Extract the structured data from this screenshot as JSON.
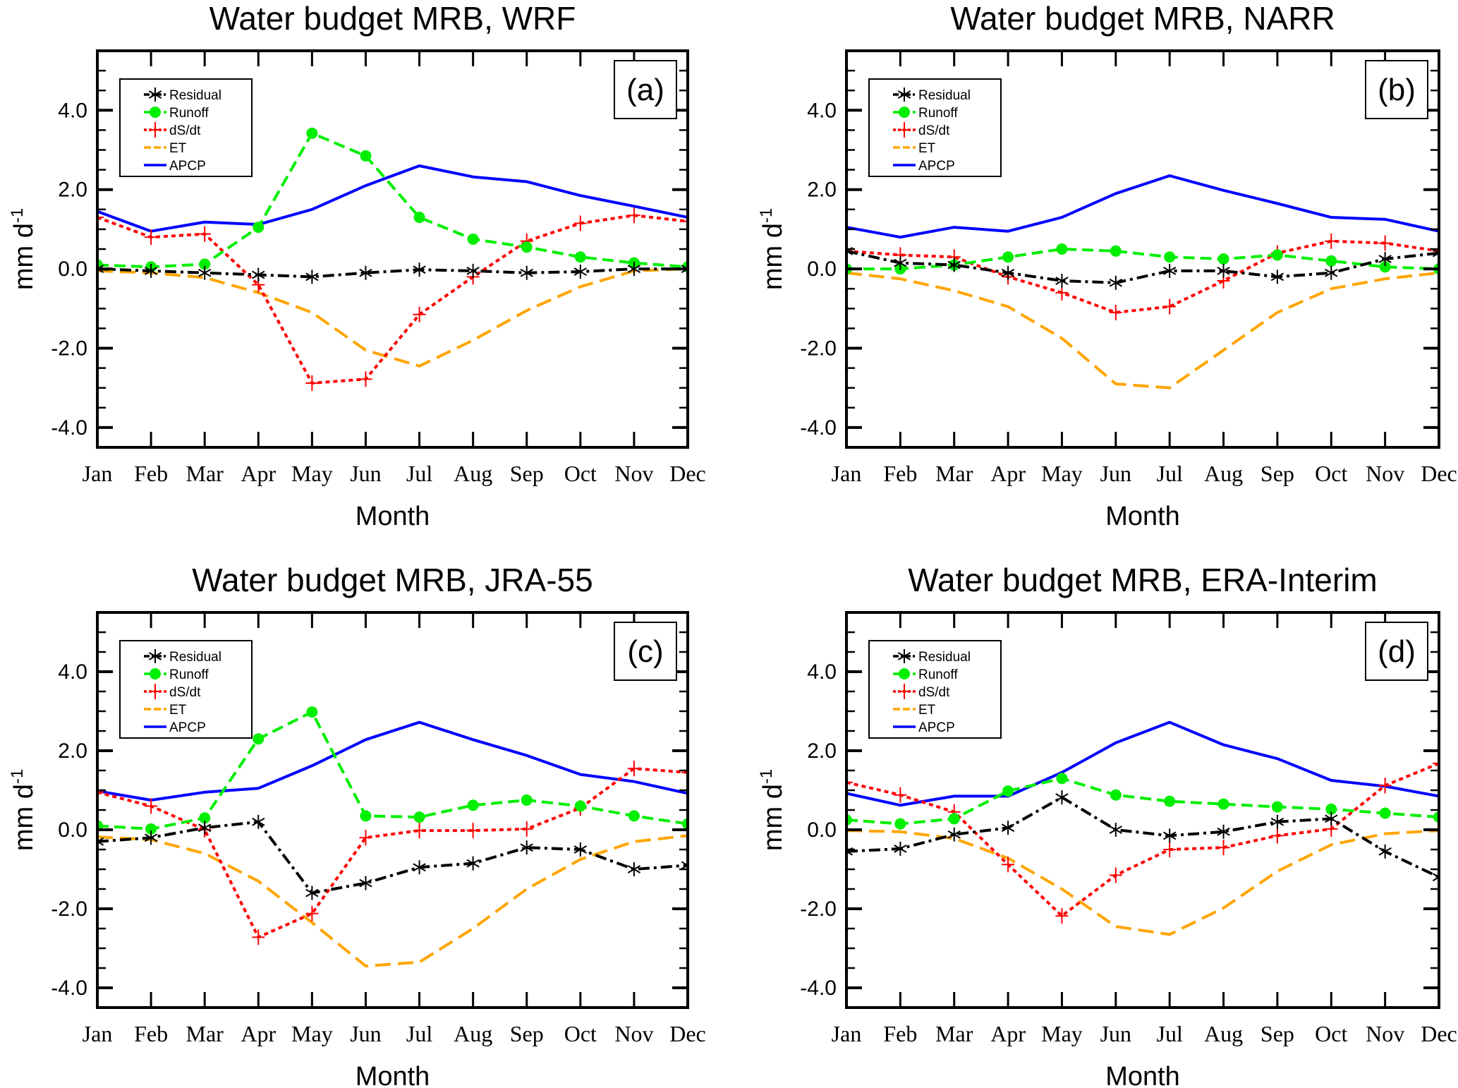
{
  "chart_data": [
    {
      "type": "line",
      "panel_label": "(a)",
      "title": "Water budget MRB, WRF",
      "xlabel": "Month",
      "ylabel": "mm d",
      "ylabel_superscript": "-1",
      "categories": [
        "Jan",
        "Feb",
        "Mar",
        "Apr",
        "May",
        "Jun",
        "Jul",
        "Aug",
        "Sep",
        "Oct",
        "Nov",
        "Dec"
      ],
      "ylim": [
        -4.5,
        5.5
      ],
      "yticks": [
        -4.0,
        -2.0,
        0.0,
        2.0,
        4.0
      ],
      "ytick_labels": [
        "-4.0",
        "-2.0",
        "0.0",
        "2.0",
        "4.0"
      ],
      "grid": false,
      "legend_position": "top-left",
      "series": [
        {
          "name": "Residual",
          "values": [
            0.0,
            -0.05,
            -0.1,
            -0.15,
            -0.2,
            -0.1,
            -0.02,
            -0.05,
            -0.1,
            -0.07,
            0.0,
            0.0
          ]
        },
        {
          "name": "Runoff",
          "values": [
            0.1,
            0.05,
            0.12,
            1.05,
            3.42,
            2.85,
            1.3,
            0.75,
            0.55,
            0.3,
            0.15,
            0.05
          ]
        },
        {
          "name": "dS/dt",
          "values": [
            1.3,
            0.8,
            0.88,
            -0.4,
            -2.88,
            -2.78,
            -1.15,
            -0.2,
            0.7,
            1.15,
            1.35,
            1.2
          ]
        },
        {
          "name": "ET",
          "values": [
            -0.05,
            -0.1,
            -0.22,
            -0.6,
            -1.1,
            -2.05,
            -2.45,
            -1.8,
            -1.05,
            -0.45,
            -0.05,
            0.0
          ]
        },
        {
          "name": "APCP",
          "values": [
            1.45,
            0.95,
            1.18,
            1.12,
            1.5,
            2.1,
            2.6,
            2.32,
            2.2,
            1.85,
            1.58,
            1.3
          ]
        }
      ]
    },
    {
      "type": "line",
      "panel_label": "(b)",
      "title": "Water budget MRB, NARR",
      "xlabel": "Month",
      "ylabel": "mm d",
      "ylabel_superscript": "-1",
      "categories": [
        "Jan",
        "Feb",
        "Mar",
        "Apr",
        "May",
        "Jun",
        "Jul",
        "Aug",
        "Sep",
        "Oct",
        "Nov",
        "Dec"
      ],
      "ylim": [
        -4.5,
        5.5
      ],
      "yticks": [
        -4.0,
        -2.0,
        0.0,
        2.0,
        4.0
      ],
      "ytick_labels": [
        "-4.0",
        "-2.0",
        "0.0",
        "2.0",
        "4.0"
      ],
      "grid": false,
      "legend_position": "top-left",
      "series": [
        {
          "name": "Residual",
          "values": [
            0.45,
            0.15,
            0.1,
            -0.1,
            -0.3,
            -0.35,
            -0.05,
            -0.05,
            -0.2,
            -0.1,
            0.25,
            0.4
          ]
        },
        {
          "name": "Runoff",
          "values": [
            0.0,
            0.0,
            0.1,
            0.3,
            0.5,
            0.45,
            0.3,
            0.25,
            0.35,
            0.2,
            0.05,
            0.0
          ]
        },
        {
          "name": "dS/dt",
          "values": [
            0.45,
            0.35,
            0.3,
            -0.2,
            -0.6,
            -1.1,
            -0.95,
            -0.3,
            0.4,
            0.7,
            0.65,
            0.45
          ]
        },
        {
          "name": "ET",
          "values": [
            -0.1,
            -0.25,
            -0.55,
            -0.95,
            -1.75,
            -2.9,
            -3.0,
            -2.05,
            -1.1,
            -0.5,
            -0.25,
            -0.1
          ]
        },
        {
          "name": "APCP",
          "values": [
            1.05,
            0.8,
            1.05,
            0.95,
            1.3,
            1.9,
            2.35,
            1.98,
            1.65,
            1.3,
            1.25,
            0.95
          ]
        }
      ]
    },
    {
      "type": "line",
      "panel_label": "(c)",
      "title": "Water budget MRB, JRA-55",
      "xlabel": "Month",
      "ylabel": "mm d",
      "ylabel_superscript": "-1",
      "categories": [
        "Jan",
        "Feb",
        "Mar",
        "Apr",
        "May",
        "Jun",
        "Jul",
        "Aug",
        "Sep",
        "Oct",
        "Nov",
        "Dec"
      ],
      "ylim": [
        -4.5,
        5.5
      ],
      "yticks": [
        -4.0,
        -2.0,
        0.0,
        2.0,
        4.0
      ],
      "ytick_labels": [
        "-4.0",
        "-2.0",
        "0.0",
        "2.0",
        "4.0"
      ],
      "grid": false,
      "legend_position": "top-left",
      "series": [
        {
          "name": "Residual",
          "values": [
            -0.3,
            -0.2,
            0.05,
            0.2,
            -1.6,
            -1.35,
            -0.95,
            -0.85,
            -0.45,
            -0.5,
            -1.0,
            -0.9
          ]
        },
        {
          "name": "Runoff",
          "values": [
            0.1,
            0.02,
            0.3,
            2.3,
            2.98,
            0.35,
            0.32,
            0.62,
            0.75,
            0.6,
            0.35,
            0.15
          ]
        },
        {
          "name": "dS/dt",
          "values": [
            0.95,
            0.6,
            0.0,
            -2.72,
            -2.12,
            -0.2,
            -0.02,
            -0.02,
            0.02,
            0.55,
            1.55,
            1.45
          ]
        },
        {
          "name": "ET",
          "values": [
            -0.18,
            -0.25,
            -0.6,
            -1.3,
            -2.35,
            -3.45,
            -3.35,
            -2.5,
            -1.5,
            -0.75,
            -0.3,
            -0.15
          ]
        },
        {
          "name": "APCP",
          "values": [
            0.98,
            0.75,
            0.95,
            1.05,
            1.62,
            2.28,
            2.72,
            2.28,
            1.88,
            1.4,
            1.22,
            0.92
          ]
        }
      ]
    },
    {
      "type": "line",
      "panel_label": "(d)",
      "title": "Water budget MRB, ERA-Interim",
      "xlabel": "Month",
      "ylabel": "mm d",
      "ylabel_superscript": "-1",
      "categories": [
        "Jan",
        "Feb",
        "Mar",
        "Apr",
        "May",
        "Jun",
        "Jul",
        "Aug",
        "Sep",
        "Oct",
        "Nov",
        "Dec"
      ],
      "ylim": [
        -4.5,
        5.5
      ],
      "yticks": [
        -4.0,
        -2.0,
        0.0,
        2.0,
        4.0
      ],
      "ytick_labels": [
        "-4.0",
        "-2.0",
        "0.0",
        "2.0",
        "4.0"
      ],
      "grid": false,
      "legend_position": "top-left",
      "series": [
        {
          "name": "Residual",
          "values": [
            -0.55,
            -0.48,
            -0.12,
            0.05,
            0.82,
            0.0,
            -0.15,
            -0.05,
            0.2,
            0.28,
            -0.55,
            -1.2
          ]
        },
        {
          "name": "Runoff",
          "values": [
            0.25,
            0.15,
            0.28,
            0.98,
            1.3,
            0.88,
            0.72,
            0.65,
            0.58,
            0.52,
            0.42,
            0.32
          ]
        },
        {
          "name": "dS/dt",
          "values": [
            1.2,
            0.88,
            0.45,
            -0.88,
            -2.18,
            -1.15,
            -0.5,
            -0.45,
            -0.15,
            0.02,
            1.12,
            1.68
          ]
        },
        {
          "name": "ET",
          "values": [
            -0.02,
            -0.05,
            -0.22,
            -0.72,
            -1.5,
            -2.45,
            -2.65,
            -1.98,
            -1.05,
            -0.38,
            -0.1,
            -0.02
          ]
        },
        {
          "name": "APCP",
          "values": [
            0.92,
            0.62,
            0.85,
            0.85,
            1.45,
            2.2,
            2.72,
            2.15,
            1.8,
            1.25,
            1.1,
            0.85
          ]
        }
      ]
    }
  ],
  "series_styles": {
    "Residual": {
      "color": "#000000",
      "marker": "asterisk",
      "line": "dash-dot"
    },
    "Runoff": {
      "color": "#00ee00",
      "marker": "filled-circle",
      "line": "dashed"
    },
    "dS/dt": {
      "color": "#ff0000",
      "marker": "plus",
      "line": "dotted"
    },
    "ET": {
      "color": "#ffa500",
      "marker": "none",
      "line": "long-dash"
    },
    "APCP": {
      "color": "#0000ff",
      "marker": "none",
      "line": "solid"
    }
  }
}
